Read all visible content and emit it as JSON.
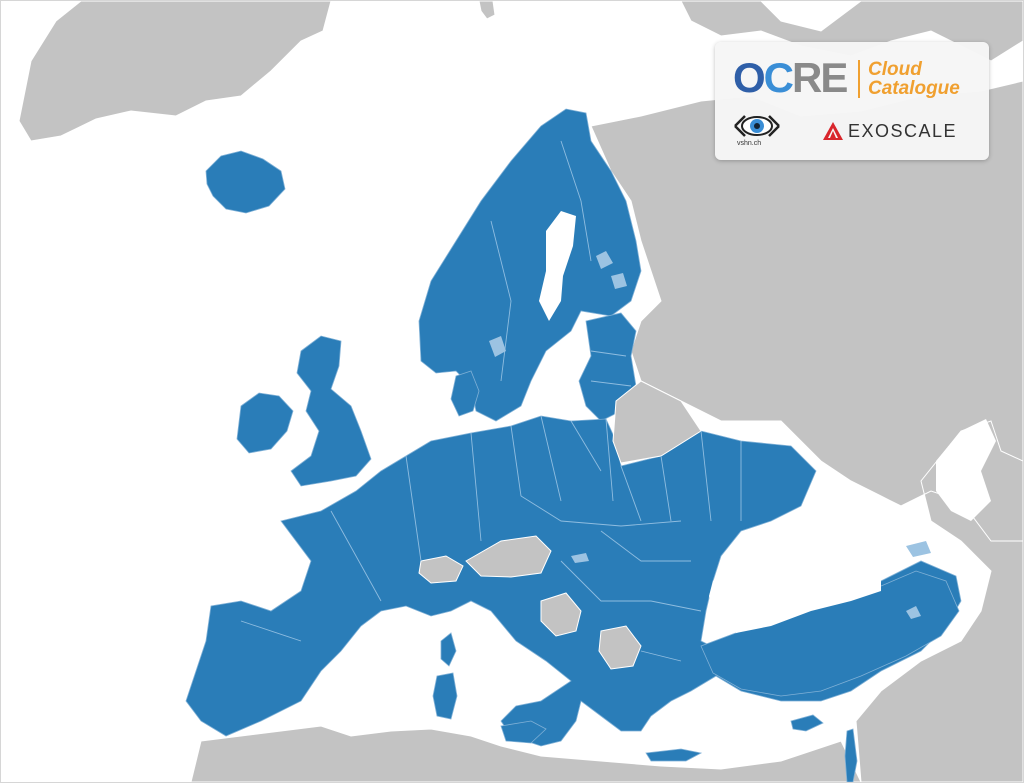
{
  "map": {
    "colors": {
      "member": "#2a7db8",
      "non_member": "#c3c3c3",
      "sea": "#ffffff",
      "lake": "#9cc3e2"
    }
  },
  "logos": {
    "ocre": {
      "part_o": "O",
      "part_c": "C",
      "part_rest": "RE"
    },
    "cloud_catalogue": {
      "line1": "Cloud",
      "line2": "Catalogue"
    },
    "vshn": {
      "label": "vshn.ch",
      "icon": "eye-icon"
    },
    "exoscale": {
      "label": "EXOSCALE",
      "icon": "exoscale-triangle-icon"
    }
  }
}
